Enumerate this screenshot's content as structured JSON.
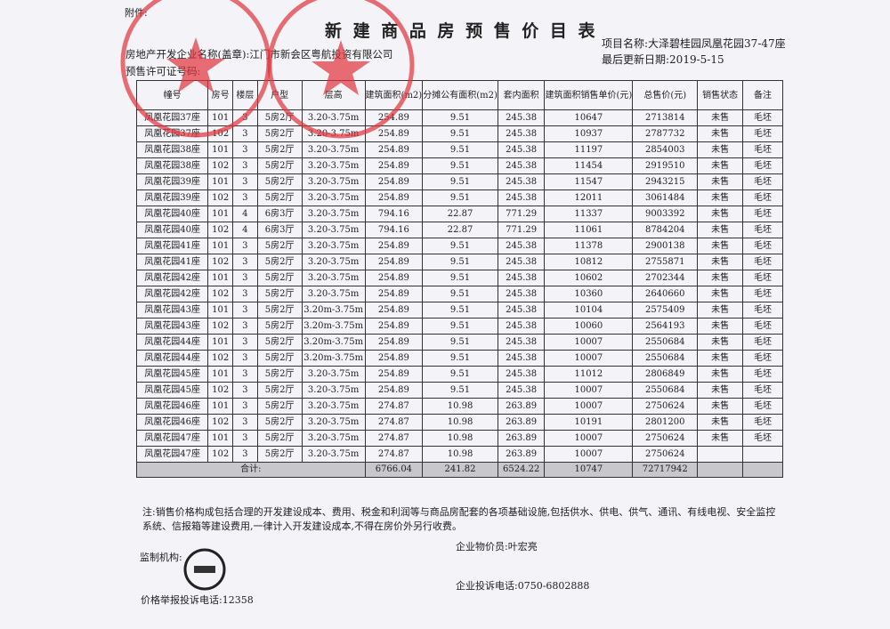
{
  "header": {
    "attachment": "附件:",
    "title": "新 建 商 品 房 预 售 价 目 表",
    "project_label": "项目名称:",
    "project": "大泽碧桂园凤凰花园37-47座",
    "updated_label": "最后更新日期:",
    "updated": "2019-5-15",
    "developer_label": "房地产开发企业名称(盖章):",
    "developer": "江门市新会区粤航投资有限公司",
    "permit_label": "预售许可证号码:"
  },
  "columns": [
    "幢号",
    "房号",
    "楼层",
    "户型",
    "层高",
    "建筑面积(m2)",
    "分摊公有面积(m2)",
    "套内面积",
    "建筑面积销售单价(元)",
    "总售价(元)",
    "销售状态",
    "备注"
  ],
  "rows": [
    [
      "凤凰花园37座",
      "101",
      "3",
      "5房2厅",
      "3.20-3.75m",
      "254.89",
      "9.51",
      "245.38",
      "10647",
      "2713814",
      "未售",
      "毛坯"
    ],
    [
      "凤凰花园37座",
      "102",
      "3",
      "5房2厅",
      "3.20-3.75m",
      "254.89",
      "9.51",
      "245.38",
      "10937",
      "2787732",
      "未售",
      "毛坯"
    ],
    [
      "凤凰花园38座",
      "101",
      "3",
      "5房2厅",
      "3.20-3.75m",
      "254.89",
      "9.51",
      "245.38",
      "11197",
      "2854003",
      "未售",
      "毛坯"
    ],
    [
      "凤凰花园38座",
      "102",
      "3",
      "5房2厅",
      "3.20-3.75m",
      "254.89",
      "9.51",
      "245.38",
      "11454",
      "2919510",
      "未售",
      "毛坯"
    ],
    [
      "凤凰花园39座",
      "101",
      "3",
      "5房2厅",
      "3.20-3.75m",
      "254.89",
      "9.51",
      "245.38",
      "11547",
      "2943215",
      "未售",
      "毛坯"
    ],
    [
      "凤凰花园39座",
      "102",
      "3",
      "5房2厅",
      "3.20-3.75m",
      "254.89",
      "9.51",
      "245.38",
      "12011",
      "3061484",
      "未售",
      "毛坯"
    ],
    [
      "凤凰花园40座",
      "101",
      "4",
      "6房3厅",
      "3.20-3.75m",
      "794.16",
      "22.87",
      "771.29",
      "11337",
      "9003392",
      "未售",
      "毛坯"
    ],
    [
      "凤凰花园40座",
      "102",
      "4",
      "6房3厅",
      "3.20-3.75m",
      "794.16",
      "22.87",
      "771.29",
      "11061",
      "8784204",
      "未售",
      "毛坯"
    ],
    [
      "凤凰花园41座",
      "101",
      "3",
      "5房2厅",
      "3.20-3.75m",
      "254.89",
      "9.51",
      "245.38",
      "11378",
      "2900138",
      "未售",
      "毛坯"
    ],
    [
      "凤凰花园41座",
      "102",
      "3",
      "5房2厅",
      "3.20-3.75m",
      "254.89",
      "9.51",
      "245.38",
      "10812",
      "2755871",
      "未售",
      "毛坯"
    ],
    [
      "凤凰花园42座",
      "101",
      "3",
      "5房2厅",
      "3.20-3.75m",
      "254.89",
      "9.51",
      "245.38",
      "10602",
      "2702344",
      "未售",
      "毛坯"
    ],
    [
      "凤凰花园42座",
      "102",
      "3",
      "5房2厅",
      "3.20-3.75m",
      "254.89",
      "9.51",
      "245.38",
      "10360",
      "2640660",
      "未售",
      "毛坯"
    ],
    [
      "凤凰花园43座",
      "101",
      "3",
      "5房2厅",
      "3.20m-3.75m",
      "254.89",
      "9.51",
      "245.38",
      "10104",
      "2575409",
      "未售",
      "毛坯"
    ],
    [
      "凤凰花园43座",
      "102",
      "3",
      "5房2厅",
      "3.20m-3.75m",
      "254.89",
      "9.51",
      "245.38",
      "10060",
      "2564193",
      "未售",
      "毛坯"
    ],
    [
      "凤凰花园44座",
      "101",
      "3",
      "5房2厅",
      "3.20m-3.75m",
      "254.89",
      "9.51",
      "245.38",
      "10007",
      "2550684",
      "未售",
      "毛坯"
    ],
    [
      "凤凰花园44座",
      "102",
      "3",
      "5房2厅",
      "3.20m-3.75m",
      "254.89",
      "9.51",
      "245.38",
      "10007",
      "2550684",
      "未售",
      "毛坯"
    ],
    [
      "凤凰花园45座",
      "101",
      "3",
      "5房2厅",
      "3.20-3.75m",
      "254.89",
      "9.51",
      "245.38",
      "11012",
      "2806849",
      "未售",
      "毛坯"
    ],
    [
      "凤凰花园45座",
      "102",
      "3",
      "5房2厅",
      "3.20-3.75m",
      "254.89",
      "9.51",
      "245.38",
      "10007",
      "2550684",
      "未售",
      "毛坯"
    ],
    [
      "凤凰花园46座",
      "101",
      "3",
      "5房2厅",
      "3.20-3.75m",
      "274.87",
      "10.98",
      "263.89",
      "10007",
      "2750624",
      "未售",
      "毛坯"
    ],
    [
      "凤凰花园46座",
      "102",
      "3",
      "5房2厅",
      "3.20-3.75m",
      "274.87",
      "10.98",
      "263.89",
      "10191",
      "2801200",
      "未售",
      "毛坯"
    ],
    [
      "凤凰花园47座",
      "101",
      "3",
      "5房2厅",
      "3.20-3.75m",
      "274.87",
      "10.98",
      "263.89",
      "10007",
      "2750624",
      "未售",
      "毛坯"
    ],
    [
      "凤凰花园47座",
      "102",
      "3",
      "5房2厅",
      "3.20-3.75m",
      "274.87",
      "10.98",
      "263.89",
      "10007",
      "2750624",
      "",
      ""
    ]
  ],
  "total": {
    "label": "合计:",
    "area": "6766.04",
    "shared": "241.82",
    "inner": "6524.22",
    "unit_price": "10747",
    "total_price": "72717942"
  },
  "footer": {
    "note": "注:销售价格构成包括合理的开发建设成本、费用、税金和利润等与商品房配套的各项基础设施,包括供水、供电、供气、通讯、有线电视、安全监控系统、信报箱等建设费用,一律计入开发建设成本,不得在房价外另行收费。",
    "supervisor_label": "监制机构:",
    "price_officer": "企业物价员:叶宏亮",
    "complaint_hotline": "价格举报投诉电话:12358",
    "company_hotline": "企业投诉电话:0750-6802888"
  },
  "colors": {
    "stamp": "#e0303a",
    "total_bg": "#c8c8cc"
  }
}
